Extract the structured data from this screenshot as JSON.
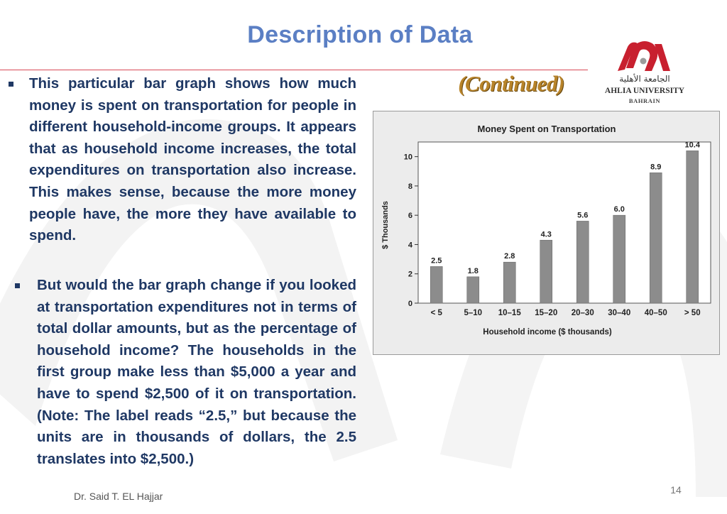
{
  "slide": {
    "title": "Description of Data",
    "subtitle": "(Continued)",
    "author": "Dr. Said T. EL Hajjar",
    "page_number": "14"
  },
  "logo": {
    "arabic_name": "الجامعة الأهلية",
    "name": "AHLIA UNIVERSITY",
    "location": "BAHRAIN",
    "colors": {
      "primary": "#c8202f",
      "secondary": "#9b9b9b"
    }
  },
  "bullets": [
    {
      "text": "This particular bar graph shows how much money is spent on transportation for people in different household-income groups. It appears that as household income increases, the total expenditures on transportation also increase. This makes sense, because the more money people have, the more they have available to spend."
    },
    {
      "text": "But would the bar graph change if you looked at transportation expenditures not in terms of total dollar amounts, but as the percentage of household income? The households in the first group make less than $5,000 a year and have to spend $2,500 of it on transportation. (Note: The label reads “2.5,” but because the units are in thousands of dollars, the 2.5 translates into $2,500.)"
    }
  ],
  "colors": {
    "title": "#5b7fc4",
    "body_text": "#1f3864",
    "rule": "#d84a55",
    "continued": "#b8842a",
    "bar_fill": "#8c8c8c",
    "chart_background": "#ececec"
  },
  "chart_data": {
    "type": "bar",
    "title": "Money Spent on Transportation",
    "xlabel": "Household income ($ thousands)",
    "ylabel": "$ Thousands",
    "categories": [
      "< 5",
      "5–10",
      "10–15",
      "15–20",
      "20–30",
      "30–40",
      "40–50",
      "> 50"
    ],
    "values": [
      2.5,
      1.8,
      2.8,
      4.3,
      5.6,
      6.0,
      8.9,
      10.4
    ],
    "data_labels": [
      "2.5",
      "1.8",
      "2.8",
      "4.3",
      "5.6",
      "6.0",
      "8.9",
      "10.4"
    ],
    "ylim": [
      0,
      11
    ],
    "yticks": [
      0,
      2,
      4,
      6,
      8,
      10
    ],
    "grid": false,
    "legend": "none"
  }
}
